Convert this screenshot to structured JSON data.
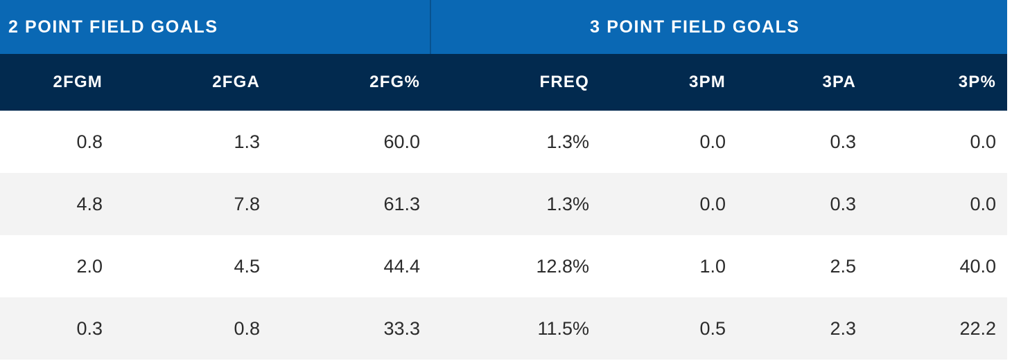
{
  "groups": {
    "two_point": "2 POINT FIELD GOALS",
    "three_point": "3 POINT FIELD GOALS"
  },
  "columns": [
    "2FGM",
    "2FGA",
    "2FG%",
    "FREQ",
    "3PM",
    "3PA",
    "3P%"
  ],
  "rows": [
    [
      "0.8",
      "1.3",
      "60.0",
      "1.3%",
      "0.0",
      "0.3",
      "0.0"
    ],
    [
      "4.8",
      "7.8",
      "61.3",
      "1.3%",
      "0.0",
      "0.3",
      "0.0"
    ],
    [
      "2.0",
      "4.5",
      "44.4",
      "12.8%",
      "1.0",
      "2.5",
      "40.0"
    ],
    [
      "0.3",
      "0.8",
      "33.3",
      "11.5%",
      "0.5",
      "2.3",
      "22.2"
    ]
  ],
  "colors": {
    "group_header_bg": "#0a68b4",
    "column_header_bg": "#022a4f",
    "row_alt_bg": "#f3f3f3",
    "text": "#2b2b2b"
  }
}
